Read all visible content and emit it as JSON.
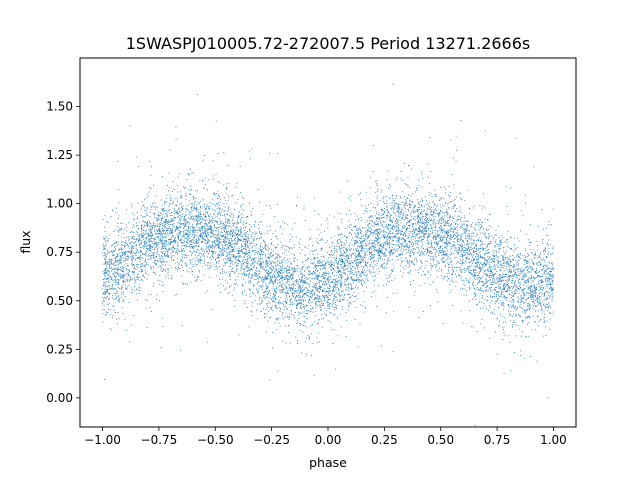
{
  "chart_data": {
    "type": "scatter",
    "title": "1SWASPJ010005.72-272007.5 Period 13271.2666s",
    "xlabel": "phase",
    "ylabel": "flux",
    "xlim": [
      -1.1,
      1.1
    ],
    "ylim": [
      -0.15,
      1.75
    ],
    "xticks": [
      -1.0,
      -0.75,
      -0.5,
      -0.25,
      0.0,
      0.25,
      0.5,
      0.75,
      1.0
    ],
    "xtick_labels": [
      "−1.00",
      "−0.75",
      "−0.50",
      "−0.25",
      "0.00",
      "0.25",
      "0.50",
      "0.75",
      "1.00"
    ],
    "yticks": [
      0.0,
      0.25,
      0.5,
      0.75,
      1.0,
      1.25,
      1.5
    ],
    "ytick_labels": [
      "0.00",
      "0.25",
      "0.50",
      "0.75",
      "1.00",
      "1.25",
      "1.50"
    ],
    "grid": false,
    "legend": "none",
    "point_color": "#1f77b4",
    "series": [
      {
        "description_free_trend": true,
        "x": [
          -1.0,
          -0.9,
          -0.8,
          -0.7,
          -0.6,
          -0.5,
          -0.4,
          -0.3,
          -0.2,
          -0.1,
          0.0,
          0.1,
          0.2,
          0.3,
          0.4,
          0.5,
          0.6,
          0.7,
          0.8,
          0.9,
          1.0
        ],
        "y": [
          0.62,
          0.7,
          0.8,
          0.85,
          0.86,
          0.84,
          0.78,
          0.68,
          0.6,
          0.56,
          0.6,
          0.7,
          0.8,
          0.85,
          0.86,
          0.84,
          0.78,
          0.68,
          0.6,
          0.57,
          0.62
        ]
      }
    ]
  }
}
